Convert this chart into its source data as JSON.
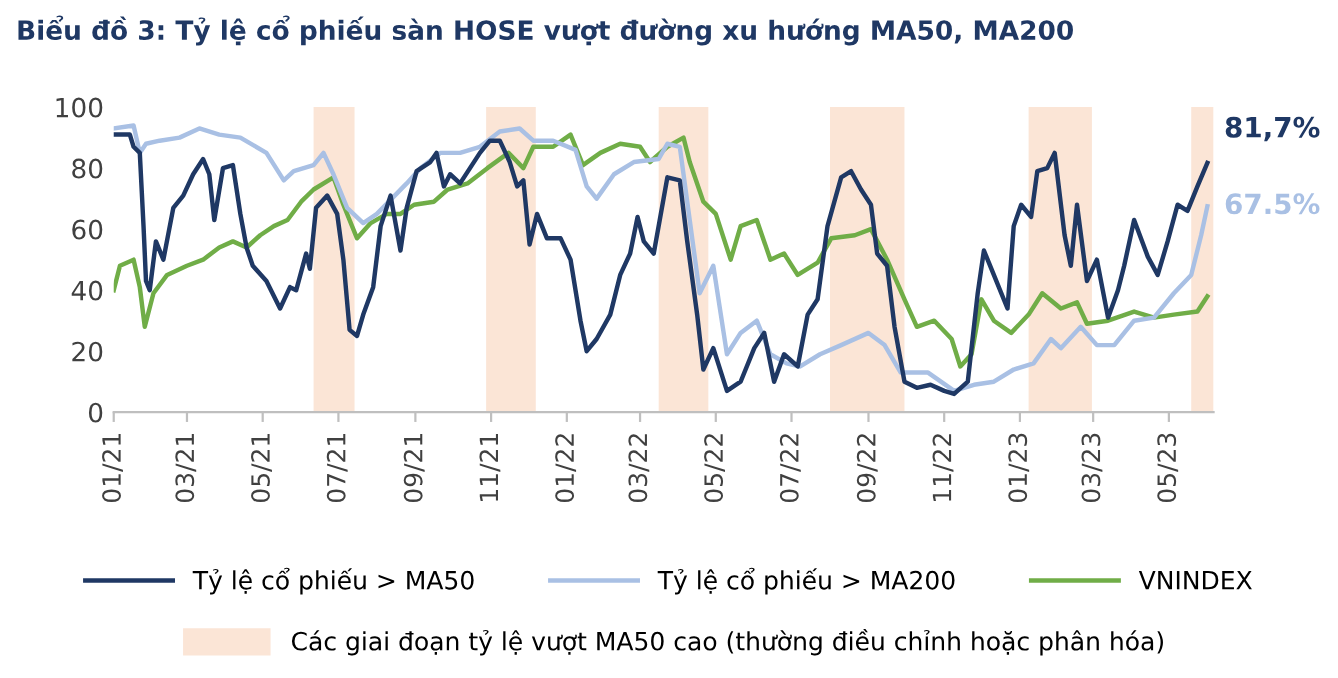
{
  "chart_data": {
    "type": "line",
    "title": "Biểu đồ 3: Tỷ lệ cổ phiếu sàn HOSE vượt đường xu hướng MA50, MA200",
    "xlim": [
      "2021-01-01",
      "2023-06-06"
    ],
    "ylim": [
      0,
      100
    ],
    "xticks": [
      {
        "value": "2021-01-01",
        "label": "01/21"
      },
      {
        "value": "2021-03-01",
        "label": "03/21"
      },
      {
        "value": "2021-05-01",
        "label": "05/21"
      },
      {
        "value": "2021-07-01",
        "label": "07/21"
      },
      {
        "value": "2021-09-01",
        "label": "09/21"
      },
      {
        "value": "2021-11-01",
        "label": "11/21"
      },
      {
        "value": "2022-01-01",
        "label": "01/22"
      },
      {
        "value": "2022-03-01",
        "label": "03/22"
      },
      {
        "value": "2022-05-01",
        "label": "05/22"
      },
      {
        "value": "2022-07-01",
        "label": "07/22"
      },
      {
        "value": "2022-09-01",
        "label": "09/22"
      },
      {
        "value": "2022-11-01",
        "label": "11/22"
      },
      {
        "value": "2023-01-01",
        "label": "01/23"
      },
      {
        "value": "2023-03-01",
        "label": "03/23"
      },
      {
        "value": "2023-05-01",
        "label": "05/23"
      }
    ],
    "yticks": [
      0,
      20,
      40,
      60,
      80,
      100
    ],
    "grid": false,
    "legend": "bottom",
    "marker": "none",
    "line_style": "solid",
    "series": [
      {
        "name": "Tỷ lệ cổ phiếu > MA50",
        "color": "#1f3864",
        "x": [
          "2021-01-01",
          "2021-01-14",
          "2021-01-17",
          "2021-01-22",
          "2021-01-25",
          "2021-01-27",
          "2021-01-30",
          "2021-02-04",
          "2021-02-10",
          "2021-02-18",
          "2021-02-26",
          "2021-03-06",
          "2021-03-14",
          "2021-03-19",
          "2021-03-23",
          "2021-03-30",
          "2021-04-07",
          "2021-04-13",
          "2021-04-18",
          "2021-04-23",
          "2021-05-04",
          "2021-05-15",
          "2021-05-23",
          "2021-05-28",
          "2021-06-05",
          "2021-06-08",
          "2021-06-13",
          "2021-06-22",
          "2021-06-30",
          "2021-07-05",
          "2021-07-10",
          "2021-07-16",
          "2021-07-21",
          "2021-07-29",
          "2021-08-04",
          "2021-08-12",
          "2021-08-20",
          "2021-08-25",
          "2021-09-02",
          "2021-09-13",
          "2021-09-18",
          "2021-09-24",
          "2021-09-29",
          "2021-10-07",
          "2021-10-15",
          "2021-10-23",
          "2021-10-31",
          "2021-11-08",
          "2021-11-16",
          "2021-11-22",
          "2021-11-27",
          "2021-12-02",
          "2021-12-08",
          "2021-12-16",
          "2021-12-27",
          "2022-01-04",
          "2022-01-12",
          "2022-01-17",
          "2022-01-25",
          "2022-02-05",
          "2022-02-13",
          "2022-02-21",
          "2022-02-27",
          "2022-03-04",
          "2022-03-12",
          "2022-03-23",
          "2022-04-02",
          "2022-04-08",
          "2022-04-16",
          "2022-04-21",
          "2022-04-29",
          "2022-05-10",
          "2022-05-21",
          "2022-06-01",
          "2022-06-09",
          "2022-06-17",
          "2022-06-25",
          "2022-07-06",
          "2022-07-14",
          "2022-07-22",
          "2022-07-30",
          "2022-08-10",
          "2022-08-18",
          "2022-08-26",
          "2022-09-03",
          "2022-09-08",
          "2022-09-16",
          "2022-09-22",
          "2022-09-30",
          "2022-10-10",
          "2022-10-21",
          "2022-11-01",
          "2022-11-09",
          "2022-11-20",
          "2022-11-28",
          "2022-12-03",
          "2022-12-11",
          "2022-12-22",
          "2022-12-27",
          "2023-01-02",
          "2023-01-10",
          "2023-01-15",
          "2023-01-23",
          "2023-01-29",
          "2023-02-06",
          "2023-02-11",
          "2023-02-16",
          "2023-02-24",
          "2023-03-04",
          "2023-03-13",
          "2023-03-21",
          "2023-03-26",
          "2023-04-03",
          "2023-04-14",
          "2023-04-22",
          "2023-04-30",
          "2023-05-08",
          "2023-05-16",
          "2023-05-24",
          "2023-06-01"
        ],
        "values": [
          91,
          91,
          87,
          85,
          61,
          43,
          40,
          56,
          50,
          67,
          71,
          78,
          83,
          78,
          63,
          80,
          81,
          65,
          54,
          48,
          43,
          34,
          41,
          40,
          52,
          47,
          67,
          71,
          65,
          50,
          27,
          25,
          32,
          41,
          61,
          71,
          53,
          67,
          79,
          82,
          85,
          74,
          78,
          75,
          80,
          85,
          89,
          89,
          82,
          74,
          76,
          55,
          65,
          57,
          57,
          50,
          30,
          20,
          24,
          32,
          45,
          52,
          64,
          56,
          52,
          77,
          76,
          56,
          32,
          14,
          21,
          7,
          10,
          21,
          26,
          10,
          19,
          15,
          32,
          37,
          61,
          77,
          79,
          73,
          68,
          52,
          48,
          28,
          10,
          8,
          9,
          7,
          6,
          10,
          39,
          53,
          45,
          34,
          61,
          68,
          64,
          79,
          80,
          85,
          58,
          48,
          68,
          43,
          50,
          31,
          40,
          48,
          63,
          51,
          45,
          56,
          68,
          66,
          74,
          81.7
        ]
      },
      {
        "name": "Tỷ lệ cổ phiếu > MA200",
        "color": "#a9c0e4",
        "x": [
          "2021-01-01",
          "2021-01-17",
          "2021-01-22",
          "2021-01-27",
          "2021-02-07",
          "2021-02-23",
          "2021-03-11",
          "2021-03-27",
          "2021-04-13",
          "2021-05-04",
          "2021-05-18",
          "2021-05-26",
          "2021-06-11",
          "2021-06-19",
          "2021-06-27",
          "2021-07-08",
          "2021-07-21",
          "2021-08-01",
          "2021-08-13",
          "2021-08-25",
          "2021-09-05",
          "2021-09-21",
          "2021-10-07",
          "2021-10-23",
          "2021-11-08",
          "2021-11-24",
          "2021-12-05",
          "2021-12-21",
          "2022-01-08",
          "2022-01-17",
          "2022-01-25",
          "2022-02-08",
          "2022-02-24",
          "2022-03-16",
          "2022-03-23",
          "2022-04-02",
          "2022-04-10",
          "2022-04-18",
          "2022-04-29",
          "2022-05-10",
          "2022-05-21",
          "2022-06-03",
          "2022-06-14",
          "2022-06-27",
          "2022-07-08",
          "2022-07-24",
          "2022-08-10",
          "2022-09-01",
          "2022-09-14",
          "2022-09-27",
          "2022-10-19",
          "2022-11-09",
          "2022-11-25",
          "2022-12-11",
          "2022-12-27",
          "2023-01-12",
          "2023-01-26",
          "2023-02-03",
          "2023-02-19",
          "2023-03-04",
          "2023-03-18",
          "2023-04-03",
          "2023-04-19",
          "2023-05-05",
          "2023-05-19",
          "2023-05-27",
          "2023-06-01"
        ],
        "values": [
          93,
          94,
          85,
          88,
          89,
          90,
          93,
          91,
          90,
          85,
          76,
          79,
          81,
          85,
          78,
          67,
          62,
          65,
          70,
          75,
          80,
          85,
          85,
          87,
          92,
          93,
          89,
          89,
          86,
          74,
          70,
          78,
          82,
          83,
          88,
          87,
          63,
          39,
          48,
          19,
          26,
          30,
          19,
          16,
          15,
          19,
          22,
          26,
          22,
          13,
          13,
          7,
          9,
          10,
          14,
          16,
          24,
          21,
          28,
          22,
          22,
          30,
          31,
          39,
          45,
          58,
          67.5
        ]
      },
      {
        "name": "VNINDEX",
        "color": "#70ad47",
        "x": [
          "2021-01-01",
          "2021-01-06",
          "2021-01-17",
          "2021-01-22",
          "2021-01-26",
          "2021-02-02",
          "2021-02-13",
          "2021-03-01",
          "2021-03-14",
          "2021-03-27",
          "2021-04-07",
          "2021-04-18",
          "2021-04-29",
          "2021-05-10",
          "2021-05-21",
          "2021-06-01",
          "2021-06-11",
          "2021-06-27",
          "2021-07-05",
          "2021-07-16",
          "2021-07-27",
          "2021-08-09",
          "2021-08-20",
          "2021-08-31",
          "2021-09-16",
          "2021-09-27",
          "2021-10-13",
          "2021-10-29",
          "2021-11-15",
          "2021-11-27",
          "2021-12-05",
          "2021-12-21",
          "2022-01-04",
          "2022-01-14",
          "2022-01-28",
          "2022-02-13",
          "2022-03-01",
          "2022-03-09",
          "2022-03-23",
          "2022-04-05",
          "2022-04-10",
          "2022-04-21",
          "2022-05-01",
          "2022-05-13",
          "2022-05-21",
          "2022-06-03",
          "2022-06-14",
          "2022-06-25",
          "2022-07-06",
          "2022-07-22",
          "2022-08-02",
          "2022-08-21",
          "2022-09-03",
          "2022-09-16",
          "2022-09-30",
          "2022-10-10",
          "2022-10-24",
          "2022-11-07",
          "2022-11-14",
          "2022-11-23",
          "2022-12-01",
          "2022-12-11",
          "2022-12-25",
          "2023-01-08",
          "2023-01-19",
          "2023-02-03",
          "2023-02-16",
          "2023-02-24",
          "2023-03-13",
          "2023-04-03",
          "2023-04-19",
          "2023-05-05",
          "2023-05-24",
          "2023-06-01"
        ],
        "values": [
          40,
          48,
          50,
          41,
          28,
          39,
          45,
          48,
          50,
          54,
          56,
          54,
          58,
          61,
          63,
          69,
          73,
          77,
          68,
          57,
          62,
          65,
          65,
          68,
          69,
          73,
          75,
          80,
          85,
          80,
          87,
          87,
          91,
          81,
          85,
          88,
          87,
          82,
          87,
          90,
          82,
          69,
          65,
          50,
          61,
          63,
          50,
          52,
          45,
          49,
          57,
          58,
          60,
          50,
          37,
          28,
          30,
          24,
          15,
          19,
          37,
          30,
          26,
          32,
          39,
          34,
          36,
          29,
          30,
          33,
          31,
          32,
          33,
          38
        ]
      }
    ],
    "bands": [
      {
        "axis": "x",
        "from": "2021-06-11",
        "to": "2021-07-14",
        "color": "#fbe5d6",
        "label": "Các giai đoạn tỷ lệ vượt MA50 cao (thường điều chỉnh hoặc phân hóa)"
      },
      {
        "axis": "x",
        "from": "2021-10-28",
        "to": "2021-12-07",
        "color": "#fbe5d6"
      },
      {
        "axis": "x",
        "from": "2022-03-16",
        "to": "2022-04-25",
        "color": "#fbe5d6"
      },
      {
        "axis": "x",
        "from": "2022-08-01",
        "to": "2022-09-30",
        "color": "#fbe5d6"
      },
      {
        "axis": "x",
        "from": "2023-01-08",
        "to": "2023-02-28",
        "color": "#fbe5d6"
      },
      {
        "axis": "x",
        "from": "2023-05-19",
        "to": "2023-06-06",
        "color": "#fbe5d6"
      }
    ],
    "annotations": [
      {
        "text": "81,7%",
        "x": "2023-06-01",
        "y": 81.7
      },
      {
        "text": "67.5%",
        "x": "2023-06-01",
        "y": 67.5
      }
    ]
  }
}
